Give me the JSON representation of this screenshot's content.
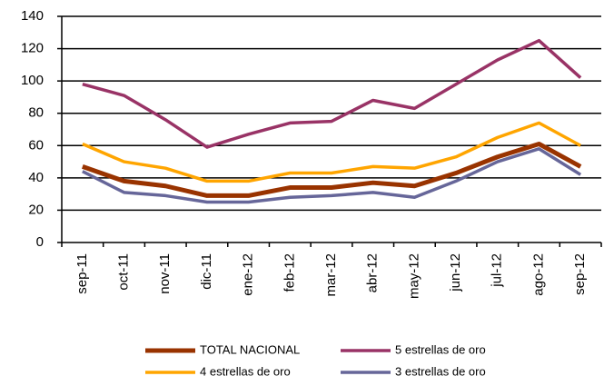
{
  "chart_data": {
    "type": "line",
    "categories": [
      "sep-11",
      "oct-11",
      "nov-11",
      "dic-11",
      "ene-12",
      "feb-12",
      "mar-12",
      "abr-12",
      "may-12",
      "jun-12",
      "jul-12",
      "ago-12",
      "sep-12"
    ],
    "series": [
      {
        "name": "TOTAL NACIONAL",
        "color": "#993300",
        "values": [
          47,
          38,
          35,
          29,
          29,
          34,
          34,
          37,
          35,
          43,
          53,
          61,
          47
        ]
      },
      {
        "name": "5 estrellas de oro",
        "color": "#993366",
        "values": [
          98,
          91,
          76,
          59,
          67,
          74,
          75,
          88,
          83,
          98,
          113,
          125,
          102
        ]
      },
      {
        "name": "4 estrellas de oro",
        "color": "#ffa500",
        "values": [
          61,
          50,
          46,
          38,
          38,
          43,
          43,
          47,
          46,
          53,
          65,
          74,
          60
        ]
      },
      {
        "name": "3 estrellas de oro",
        "color": "#666699",
        "values": [
          44,
          31,
          29,
          25,
          25,
          28,
          29,
          31,
          28,
          38,
          50,
          58,
          42
        ]
      }
    ],
    "ylim": [
      0,
      140
    ],
    "yticks": [
      0,
      20,
      40,
      60,
      80,
      100,
      120,
      140
    ],
    "grid": true
  }
}
